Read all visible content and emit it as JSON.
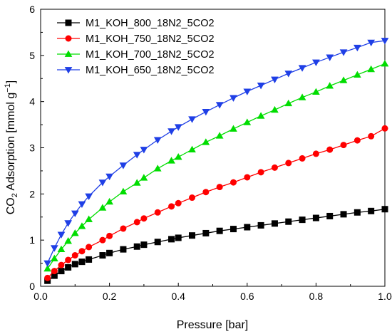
{
  "chart_data": {
    "type": "line",
    "xlabel": "Pressure [bar]",
    "ylabel": {
      "prefix": "CO",
      "sub": "2",
      "mid": " Adsorption [mmol g",
      "sup": "−1",
      "suffix": "]"
    },
    "xlim": [
      0,
      1.0
    ],
    "ylim": [
      0,
      6
    ],
    "x_ticks": [
      "0.0",
      "0.2",
      "0.4",
      "0.6",
      "0.8",
      "1.0"
    ],
    "y_ticks": [
      "0",
      "1",
      "2",
      "3",
      "4",
      "5",
      "6"
    ],
    "grid": false,
    "legend_position": "top-left",
    "x": [
      0.02,
      0.04,
      0.06,
      0.08,
      0.1,
      0.12,
      0.14,
      0.18,
      0.2,
      0.24,
      0.28,
      0.3,
      0.34,
      0.38,
      0.4,
      0.44,
      0.48,
      0.52,
      0.56,
      0.6,
      0.64,
      0.68,
      0.72,
      0.76,
      0.8,
      0.84,
      0.88,
      0.92,
      0.96,
      1.0
    ],
    "series": [
      {
        "name": "M1_KOH_800_18N2_5CO2",
        "color": "#000000",
        "marker": "square",
        "values": [
          0.12,
          0.23,
          0.33,
          0.41,
          0.48,
          0.53,
          0.58,
          0.67,
          0.72,
          0.8,
          0.86,
          0.9,
          0.96,
          1.02,
          1.05,
          1.1,
          1.15,
          1.2,
          1.24,
          1.28,
          1.32,
          1.36,
          1.4,
          1.44,
          1.48,
          1.52,
          1.56,
          1.6,
          1.63,
          1.67
        ]
      },
      {
        "name": "M1_KOH_750_18N2_5CO2",
        "color": "#ff0000",
        "marker": "circle",
        "values": [
          0.18,
          0.33,
          0.46,
          0.57,
          0.67,
          0.76,
          0.85,
          1.0,
          1.09,
          1.25,
          1.39,
          1.47,
          1.6,
          1.73,
          1.8,
          1.92,
          2.04,
          2.15,
          2.25,
          2.36,
          2.47,
          2.57,
          2.67,
          2.77,
          2.87,
          2.96,
          3.06,
          3.16,
          3.25,
          3.42
        ]
      },
      {
        "name": "M1_KOH_700_18N2_5CO2",
        "color": "#00dd00",
        "marker": "triangle-up",
        "values": [
          0.38,
          0.6,
          0.8,
          0.98,
          1.15,
          1.3,
          1.45,
          1.7,
          1.83,
          2.05,
          2.24,
          2.35,
          2.55,
          2.72,
          2.8,
          2.96,
          3.12,
          3.26,
          3.41,
          3.55,
          3.69,
          3.82,
          3.96,
          4.09,
          4.21,
          4.34,
          4.46,
          4.58,
          4.7,
          4.82
        ]
      },
      {
        "name": "M1_KOH_650_18N2_5CO2",
        "color": "#1f3fe6",
        "marker": "triangle-down",
        "values": [
          0.5,
          0.83,
          1.12,
          1.37,
          1.58,
          1.78,
          1.95,
          2.25,
          2.38,
          2.62,
          2.85,
          2.96,
          3.17,
          3.36,
          3.45,
          3.62,
          3.78,
          3.93,
          4.08,
          4.22,
          4.35,
          4.48,
          4.61,
          4.73,
          4.85,
          4.96,
          5.07,
          5.17,
          5.28,
          5.32
        ]
      }
    ]
  }
}
